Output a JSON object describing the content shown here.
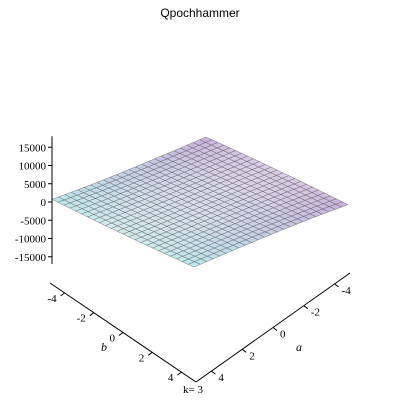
{
  "chart_data": {
    "type": "surface3d",
    "title": "Qpochhammer",
    "function": "Qpochhammer(a, b, k)",
    "parameter": {
      "name": "k",
      "label": "k= 3",
      "value": 3
    },
    "x": {
      "name": "a",
      "label": "a",
      "range": [
        -5,
        5
      ],
      "ticks": [
        -4,
        -2,
        0,
        2,
        4
      ]
    },
    "y": {
      "name": "b",
      "label": "b",
      "range": [
        -5,
        5
      ],
      "ticks": [
        -4,
        -2,
        0,
        2,
        4
      ]
    },
    "z": {
      "range": [
        -17000,
        18000
      ],
      "ticks": [
        15000,
        10000,
        5000,
        0,
        -5000,
        -10000,
        -15000
      ],
      "tick_labels": [
        "15000",
        "10000",
        "5000",
        "0",
        "-5000",
        "-10000",
        "-15000"
      ]
    },
    "grid": true,
    "colors": {
      "mesh": "#4a4a4a",
      "purple": "#b07acd",
      "cyan": "#8ee6ea",
      "gray": "#6e6e6e",
      "light": "#eeeeee"
    }
  }
}
